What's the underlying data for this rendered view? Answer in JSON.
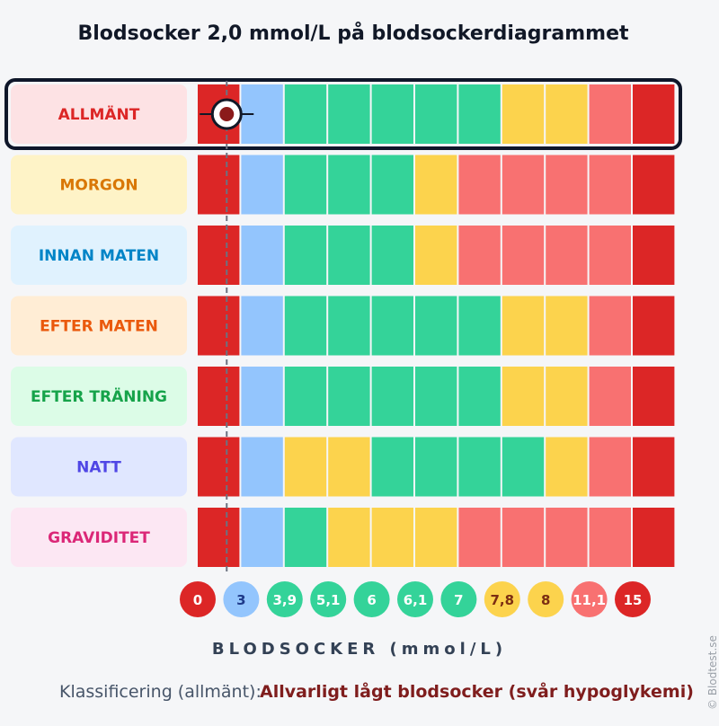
{
  "chart_data": {
    "type": "bar",
    "title": "Blodsocker 2,0 mmol/L på blodsockerdiagrammet",
    "xlabel": "BLODSOCKER (mmol/L)",
    "marker_value": 2.0,
    "selected_row": "ALLMÄNT",
    "ticks": [
      "0",
      "3",
      "3,9",
      "5,1",
      "6",
      "6,1",
      "7",
      "7,8",
      "8",
      "11,1",
      "15"
    ],
    "tick_colors": [
      "red",
      "blue",
      "green",
      "green",
      "green",
      "green",
      "green",
      "yellow",
      "yellow",
      "salmon",
      "red"
    ],
    "rows": [
      {
        "label": "ALLMÄNT",
        "segments": [
          "red",
          "blue",
          "green",
          "green",
          "green",
          "green",
          "green",
          "yellow",
          "yellow",
          "salmon",
          "red"
        ]
      },
      {
        "label": "MORGON",
        "segments": [
          "red",
          "blue",
          "green",
          "green",
          "green",
          "yellow",
          "salmon",
          "salmon",
          "salmon",
          "salmon",
          "red"
        ]
      },
      {
        "label": "INNAN MATEN",
        "segments": [
          "red",
          "blue",
          "green",
          "green",
          "green",
          "yellow",
          "salmon",
          "salmon",
          "salmon",
          "salmon",
          "red"
        ]
      },
      {
        "label": "EFTER MATEN",
        "segments": [
          "red",
          "blue",
          "green",
          "green",
          "green",
          "green",
          "green",
          "yellow",
          "yellow",
          "salmon",
          "red"
        ]
      },
      {
        "label": "EFTER TRÄNING",
        "segments": [
          "red",
          "blue",
          "green",
          "green",
          "green",
          "green",
          "green",
          "yellow",
          "yellow",
          "salmon",
          "red"
        ]
      },
      {
        "label": "NATT",
        "segments": [
          "red",
          "blue",
          "yellow",
          "yellow",
          "green",
          "green",
          "green",
          "green",
          "yellow",
          "salmon",
          "red"
        ]
      },
      {
        "label": "GRAVIDITET",
        "segments": [
          "red",
          "blue",
          "green",
          "yellow",
          "yellow",
          "yellow",
          "salmon",
          "salmon",
          "salmon",
          "salmon",
          "red"
        ]
      }
    ],
    "colors": {
      "red": "#dc2626",
      "blue": "#93c5fd",
      "green": "#34d399",
      "yellow": "#fcd34d",
      "salmon": "#f87171",
      "marker": "#8b1a1a"
    },
    "tick_text_colors": {
      "red": "#ffffff",
      "blue": "#1e3a8a",
      "green": "#ffffff",
      "yellow": "#7c2d12",
      "salmon": "#ffffff"
    },
    "label_styles": {
      "ALLMÄNT": {
        "bg": "#fde2e4",
        "fg": "#dc2626"
      },
      "MORGON": {
        "bg": "#fef3c7",
        "fg": "#d97706"
      },
      "INNAN MATEN": {
        "bg": "#e0f2fe",
        "fg": "#0284c7"
      },
      "EFTER MATEN": {
        "bg": "#ffedd5",
        "fg": "#ea580c"
      },
      "EFTER TRÄNING": {
        "bg": "#dcfce7",
        "fg": "#16a34a"
      },
      "NATT": {
        "bg": "#e0e7ff",
        "fg": "#4f46e5"
      },
      "GRAVIDITET": {
        "bg": "#fce7f3",
        "fg": "#db2777"
      }
    }
  },
  "classification": {
    "label": "Klassificering (allmänt):",
    "value": "Allvarligt lågt blodsocker (svår hypoglykemi)",
    "value_color": "#7f1d1d"
  },
  "watermark": "© Blodtest.se"
}
